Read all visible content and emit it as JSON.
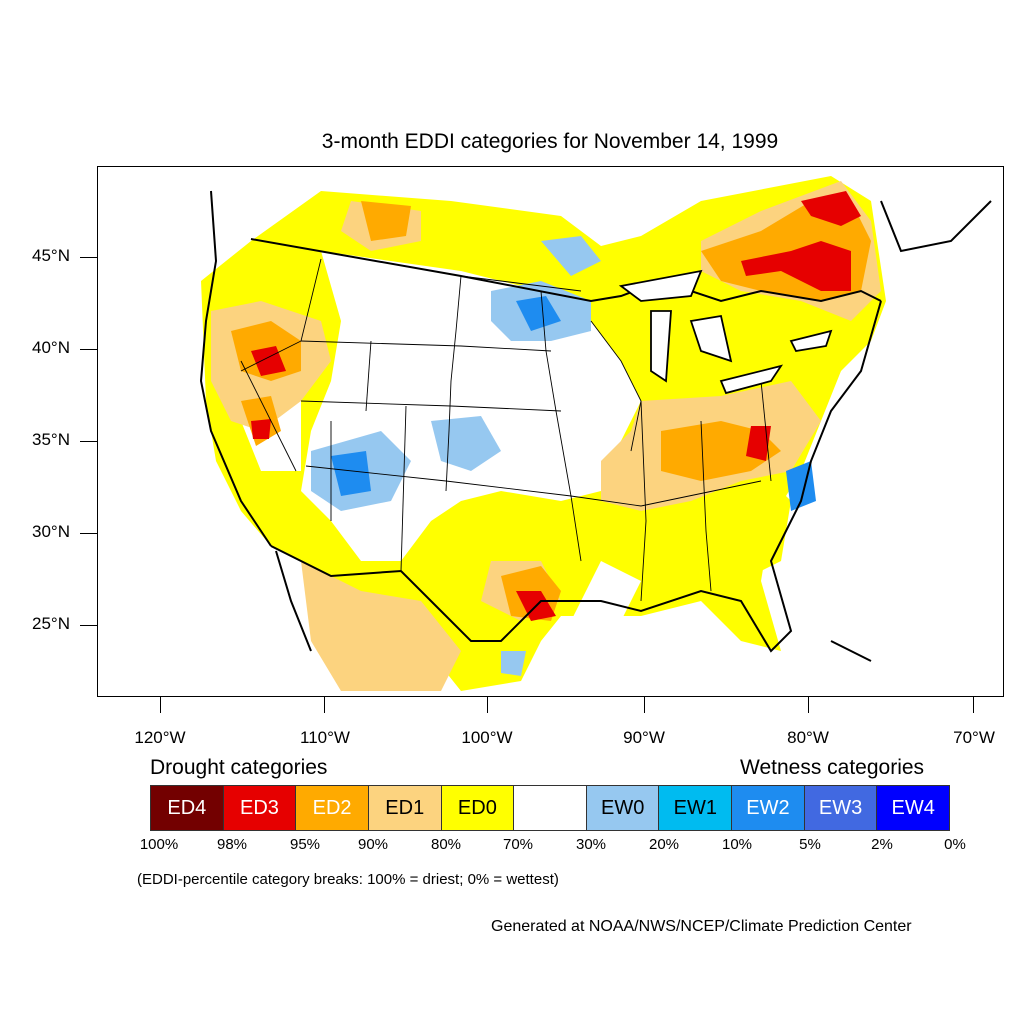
{
  "title": "3-month EDDI categories for November 14, 1999",
  "lat_labels": [
    "45°N",
    "40°N",
    "35°N",
    "30°N",
    "25°N"
  ],
  "lon_labels": [
    "120°W",
    "110°W",
    "100°W",
    "90°W",
    "80°W",
    "70°W"
  ],
  "legend": {
    "drought_heading": "Drought categories",
    "wetness_heading": "Wetness categories",
    "categories": [
      {
        "label": "ED4",
        "color": "#730000",
        "text_color": "#ffffff"
      },
      {
        "label": "ED3",
        "color": "#e60000",
        "text_color": "#ffffff"
      },
      {
        "label": "ED2",
        "color": "#ffaa00",
        "text_color": "#ffffff"
      },
      {
        "label": "ED1",
        "color": "#fcd37f",
        "text_color": "#000000"
      },
      {
        "label": "ED0",
        "color": "#ffff00",
        "text_color": "#000000"
      },
      {
        "label": "",
        "color": "#ffffff",
        "text_color": "#000000"
      },
      {
        "label": "EW0",
        "color": "#96c8f0",
        "text_color": "#000000"
      },
      {
        "label": "EW1",
        "color": "#00bbf0",
        "text_color": "#000000"
      },
      {
        "label": "EW2",
        "color": "#1e8cf0",
        "text_color": "#ffffff"
      },
      {
        "label": "EW3",
        "color": "#4169e1",
        "text_color": "#ffffff"
      },
      {
        "label": "EW4",
        "color": "#0000ff",
        "text_color": "#ffffff"
      }
    ],
    "percent_breaks": [
      "100%",
      "98%",
      "95%",
      "90%",
      "80%",
      "70%",
      "30%",
      "20%",
      "10%",
      "5%",
      "2%",
      "0%"
    ]
  },
  "note": "(EDDI-percentile category breaks: 100% = driest; 0% = wettest)",
  "credit": "Generated at NOAA/NWS/NCEP/Climate Prediction Center"
}
